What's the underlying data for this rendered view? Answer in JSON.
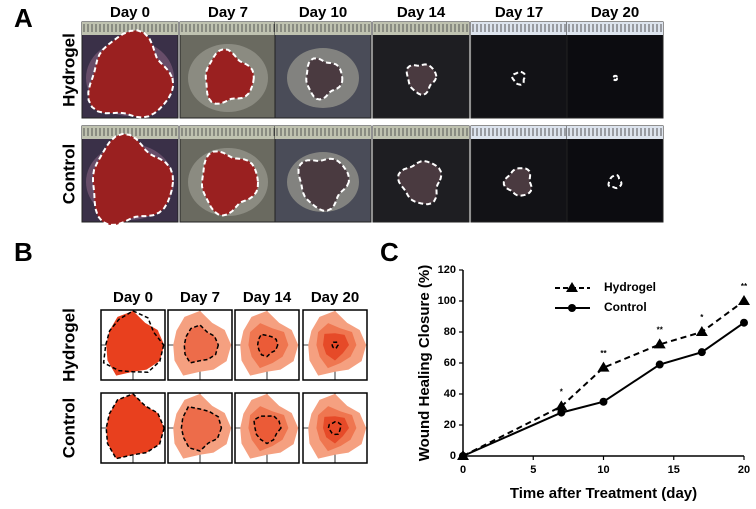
{
  "panel_a": {
    "label": "A",
    "days": [
      "Day 0",
      "Day 7",
      "Day 10",
      "Day 14",
      "Day 17",
      "Day 20"
    ],
    "rows": [
      "Hydrogel",
      "Control"
    ]
  },
  "panel_b": {
    "label": "B",
    "days": [
      "Day 0",
      "Day 7",
      "Day 14",
      "Day 20"
    ],
    "rows": [
      "Hydrogel",
      "Control"
    ]
  },
  "chart_data": {
    "type": "line",
    "label": "C",
    "xlabel": "Time after Treatment (day)",
    "ylabel": "Wound Healing Closure (%)",
    "x": [
      0,
      7,
      10,
      14,
      17,
      20
    ],
    "series": [
      {
        "name": "Hydrogel",
        "color": "#000000",
        "marker": "triangle",
        "dashed": true,
        "values": [
          0,
          32,
          57,
          72,
          80,
          100
        ]
      },
      {
        "name": "Control",
        "color": "#000000",
        "marker": "circle",
        "dashed": false,
        "values": [
          0,
          28,
          35,
          59,
          67,
          86
        ]
      }
    ],
    "xlim": [
      0,
      20
    ],
    "xticks": [
      0,
      5,
      10,
      15,
      20
    ],
    "ylim": [
      0,
      120
    ],
    "yticks": [
      0,
      20,
      40,
      60,
      80,
      100,
      120
    ],
    "annotations": [
      {
        "x": 7,
        "text": "*"
      },
      {
        "x": 10,
        "text": "**"
      },
      {
        "x": 14,
        "text": "**"
      },
      {
        "x": 17,
        "text": "*"
      },
      {
        "x": 20,
        "text": "**"
      }
    ],
    "legend": "upper center"
  }
}
